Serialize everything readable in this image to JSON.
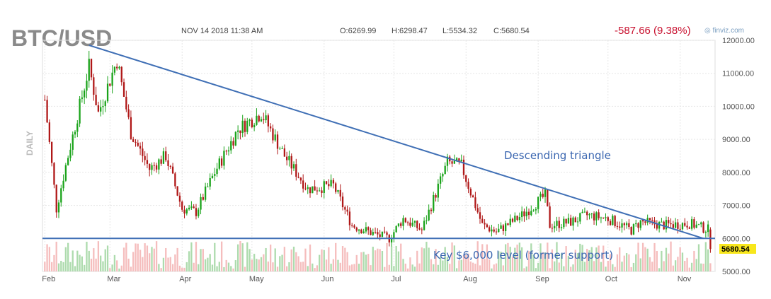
{
  "chart_data": {
    "type": "candlestick",
    "title": "BTC/USD",
    "header": {
      "datetime": "NOV 14 2018 11:38 AM",
      "open": "O:6269.99",
      "high": "H:6298.47",
      "low": "L:5534.32",
      "close": "C:5680.54",
      "change": "-587.66 (9.38%)",
      "source": "finviz.com"
    },
    "period_label": "DAILY",
    "x_ticks": [
      "Feb",
      "Mar",
      "Apr",
      "May",
      "Jun",
      "Jul",
      "Aug",
      "Sep",
      "Oct",
      "Nov"
    ],
    "y_ticks": [
      "5000.00",
      "6000.00",
      "7000.00",
      "8000.00",
      "9000.00",
      "10000.00",
      "11000.00",
      "12000.00"
    ],
    "ylim": [
      5000,
      12000
    ],
    "last_price_label": "5680.54",
    "anchors": [
      [
        "2018-02-01",
        10200
      ],
      [
        "2018-02-06",
        6900
      ],
      [
        "2018-02-10",
        8200
      ],
      [
        "2018-02-20",
        11200
      ],
      [
        "2018-02-24",
        9800
      ],
      [
        "2018-03-04",
        11400
      ],
      [
        "2018-03-10",
        9200
      ],
      [
        "2018-03-18",
        8100
      ],
      [
        "2018-03-25",
        8500
      ],
      [
        "2018-04-01",
        6900
      ],
      [
        "2018-04-07",
        6800
      ],
      [
        "2018-04-15",
        8000
      ],
      [
        "2018-04-25",
        9300
      ],
      [
        "2018-05-05",
        9800
      ],
      [
        "2018-05-15",
        8500
      ],
      [
        "2018-05-25",
        7500
      ],
      [
        "2018-06-05",
        7600
      ],
      [
        "2018-06-13",
        6400
      ],
      [
        "2018-06-24",
        6100
      ],
      [
        "2018-06-29",
        6000
      ],
      [
        "2018-07-05",
        6600
      ],
      [
        "2018-07-13",
        6250
      ],
      [
        "2018-07-24",
        8300
      ],
      [
        "2018-07-30",
        8200
      ],
      [
        "2018-08-08",
        6400
      ],
      [
        "2018-08-14",
        6200
      ],
      [
        "2018-08-25",
        6700
      ],
      [
        "2018-09-04",
        7300
      ],
      [
        "2018-09-06",
        6400
      ],
      [
        "2018-09-15",
        6500
      ],
      [
        "2018-09-22",
        6700
      ],
      [
        "2018-10-01",
        6600
      ],
      [
        "2018-10-11",
        6250
      ],
      [
        "2018-10-15",
        6500
      ],
      [
        "2018-10-25",
        6400
      ],
      [
        "2018-11-05",
        6450
      ],
      [
        "2018-11-13",
        6270
      ],
      [
        "2018-11-14",
        5680.54
      ]
    ],
    "volume": {
      "scale_label": "relative",
      "max_ratio_vs_price_panel": 0.12
    },
    "annotations": [
      {
        "text": "Descending triangle",
        "type": "trendline",
        "from": [
          "2018-02-20",
          11850
        ],
        "to": [
          "2018-11-11",
          6000
        ]
      },
      {
        "text": "Key $6,000 level (former support)",
        "type": "hline",
        "y": 6000
      }
    ]
  }
}
